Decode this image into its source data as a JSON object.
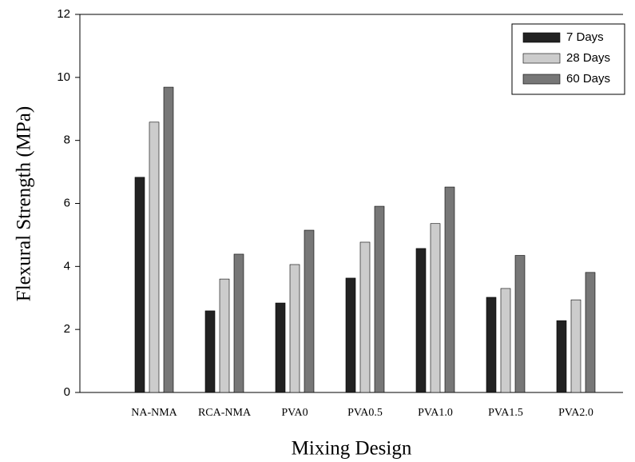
{
  "chart_data": {
    "type": "bar",
    "xlabel": "Mixing Design",
    "ylabel": "Flexural Strength (MPa)",
    "categories": [
      "NA-NMA",
      "RCA-NMA",
      "PVA0",
      "PVA0.5",
      "PVA1.0",
      "PVA1.5",
      "PVA2.0"
    ],
    "series": [
      {
        "name": "7 Days",
        "color": "#222222",
        "values": [
          6.83,
          2.59,
          2.84,
          3.63,
          4.57,
          3.02,
          2.28
        ]
      },
      {
        "name": "28 Days",
        "color": "#cccccc",
        "values": [
          8.58,
          3.6,
          4.06,
          4.77,
          5.36,
          3.3,
          2.94
        ]
      },
      {
        "name": "60 Days",
        "color": "#777777",
        "values": [
          9.69,
          4.39,
          5.15,
          5.91,
          6.52,
          4.35,
          3.81
        ]
      }
    ],
    "ylim": [
      0,
      12
    ],
    "yticks": [
      0,
      2,
      4,
      6,
      8,
      10,
      12
    ],
    "legend": "upper right"
  }
}
